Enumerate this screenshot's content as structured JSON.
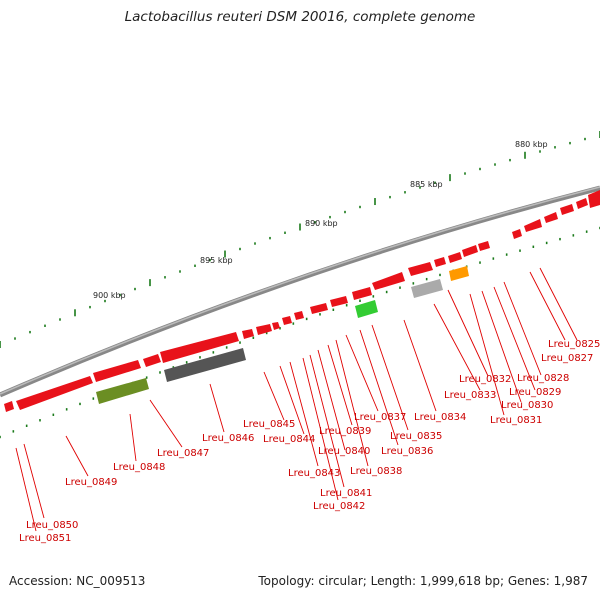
{
  "title": "Lactobacillus reuteri DSM 20016, complete genome",
  "accession": "Accession: NC_009513",
  "summary": "Topology: circular; Length: 1,999,618 bp; Genes: 1,987",
  "kbp_labels": [
    "880 kbp",
    "885 kbp",
    "890 kbp",
    "895 kbp",
    "900 kbp"
  ],
  "gene_labels": [
    "Lreu_0825",
    "Lreu_0827",
    "Lreu_0828",
    "Lreu_0829",
    "Lreu_0830",
    "Lreu_0831",
    "Lreu_0832",
    "Lreu_0833",
    "Lreu_0834",
    "Lreu_0835",
    "Lreu_0836",
    "Lreu_0837",
    "Lreu_0838",
    "Lreu_0839",
    "Lreu_0840",
    "Lreu_0841",
    "Lreu_0842",
    "Lreu_0843",
    "Lreu_0844",
    "Lreu_0845",
    "Lreu_0846",
    "Lreu_0847",
    "Lreu_0848",
    "Lreu_0849",
    "Lreu_0850",
    "Lreu_0851"
  ],
  "colors": {
    "gene": "#e8121a",
    "backbone": "#888888",
    "tick": "#1a7a1a",
    "label": "#cc0000",
    "green": "#33cc33",
    "olive": "#6b8e23",
    "dark_gray": "#555555",
    "light_gray": "#aaaaaa",
    "orange": "#ff9900"
  }
}
